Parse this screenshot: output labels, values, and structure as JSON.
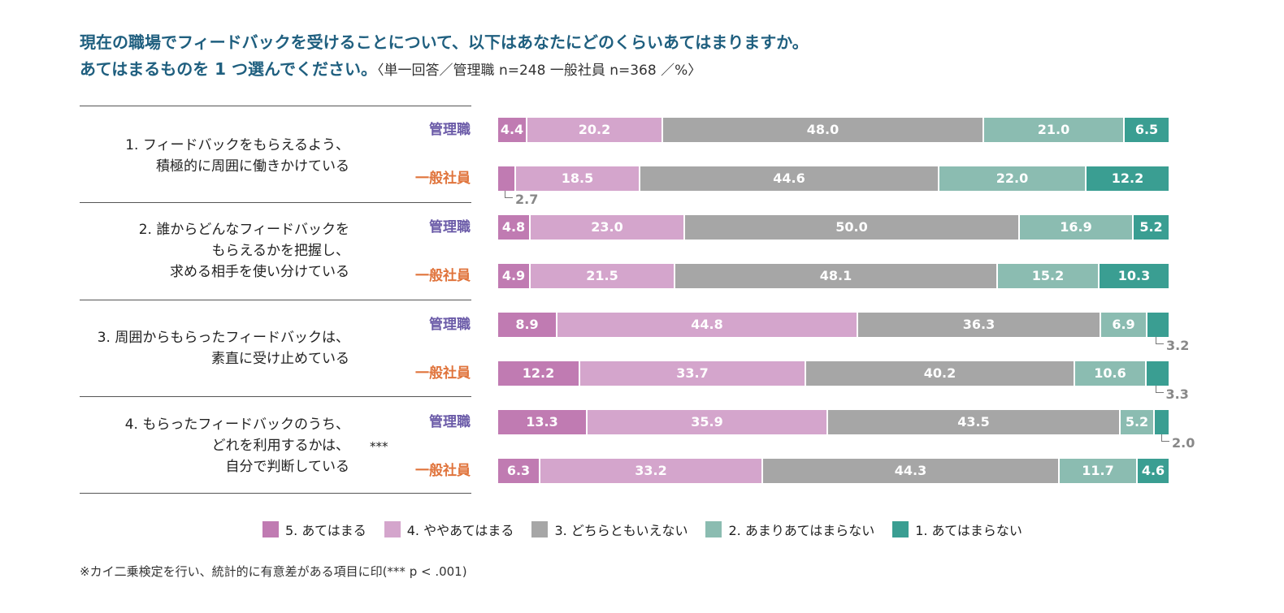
{
  "title": {
    "line1": "現在の職場でフィードバックを受けることについて、以下はあなたにどのくらいあてはまりますか。",
    "line2": "あてはまるものを 1 つ選んでください。",
    "line2_sub": "〈単一回答／管理職 n=248 一般社員 n=368 ／%〉"
  },
  "colors": {
    "c5": "#c07bb2",
    "c4": "#d4a5cc",
    "c3": "#a6a6a6",
    "c2": "#8bbcb1",
    "c1": "#3a9e92",
    "manager": "#6b5ba8",
    "employee": "#e0743c"
  },
  "chart_data": {
    "type": "bar",
    "orientation": "horizontal",
    "stacked": true,
    "unit": "%",
    "legend": [
      {
        "key": "c5",
        "label": "5. あてはまる"
      },
      {
        "key": "c4",
        "label": "4. ややあてはまる"
      },
      {
        "key": "c3",
        "label": "3. どちらともいえない"
      },
      {
        "key": "c2",
        "label": "2. あまりあてはまらない"
      },
      {
        "key": "c1",
        "label": "1. あてはまらない"
      }
    ],
    "questions": [
      {
        "label": [
          "1. フィードバックをもらえるよう、",
          "積極的に周囲に働きかけている"
        ],
        "significance": "",
        "rows": [
          {
            "group": "管理職",
            "values": [
              4.4,
              20.2,
              48.0,
              21.0,
              6.5
            ]
          },
          {
            "group": "一般社員",
            "values": [
              2.7,
              18.5,
              44.6,
              22.0,
              12.2
            ]
          }
        ]
      },
      {
        "label": [
          "2. 誰からどんなフィードバックを",
          "もらえるかを把握し、",
          "求める相手を使い分けている"
        ],
        "significance": "",
        "rows": [
          {
            "group": "管理職",
            "values": [
              4.8,
              23.0,
              50.0,
              16.9,
              5.2
            ]
          },
          {
            "group": "一般社員",
            "values": [
              4.9,
              21.5,
              48.1,
              15.2,
              10.3
            ]
          }
        ]
      },
      {
        "label": [
          "3. 周囲からもらったフィードバックは、",
          "素直に受け止めている"
        ],
        "significance": "",
        "rows": [
          {
            "group": "管理職",
            "values": [
              8.9,
              44.8,
              36.3,
              6.9,
              3.2
            ]
          },
          {
            "group": "一般社員",
            "values": [
              12.2,
              33.7,
              40.2,
              10.6,
              3.3
            ]
          }
        ]
      },
      {
        "label": [
          "4. もらったフィードバックのうち、",
          "どれを利用するかは、",
          "自分で判断している"
        ],
        "significance": "***",
        "rows": [
          {
            "group": "管理職",
            "values": [
              13.3,
              35.9,
              43.5,
              5.2,
              2.0
            ]
          },
          {
            "group": "一般社員",
            "values": [
              6.3,
              33.2,
              44.3,
              11.7,
              4.6
            ]
          }
        ]
      }
    ]
  },
  "note": "※カイ二乗検定を行い、統計的に有意差がある項目に印(*** p < .001)"
}
